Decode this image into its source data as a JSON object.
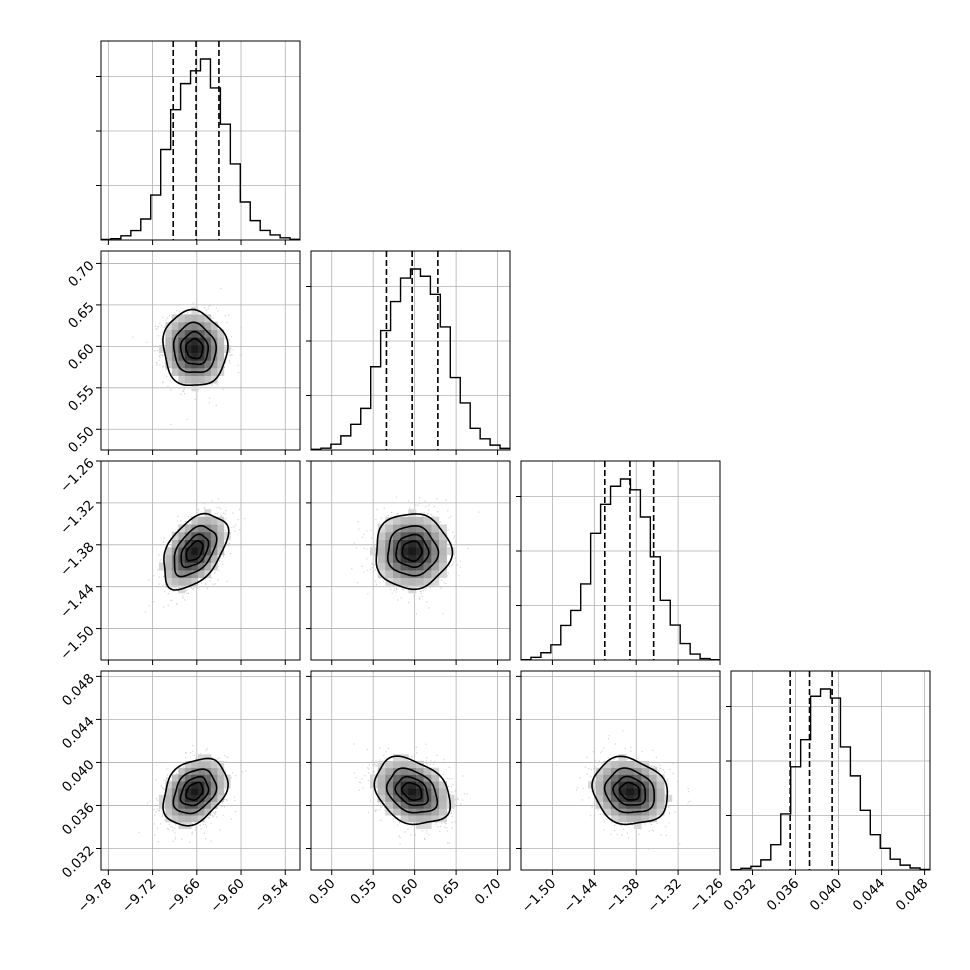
{
  "chart_data": {
    "type": "corner",
    "title": "",
    "parameters": [
      {
        "range": [
          -9.79,
          -9.52
        ],
        "ticks": [
          -9.78,
          -9.72,
          -9.66,
          -9.6,
          -9.54
        ],
        "tick_labels": [
          "−9.78",
          "−9.72",
          "−9.66",
          "−9.60",
          "−9.54"
        ],
        "quantiles": [
          -9.692,
          -9.661,
          -9.63
        ],
        "hist": [
          0.3,
          0.7,
          2.3,
          5.2,
          11.6,
          24.8,
          50.0,
          72.0,
          86.4,
          93.5,
          100.0,
          84.0,
          64.0,
          42.0,
          21.0,
          10.7,
          5.3,
          2.8,
          1.2,
          0.4
        ]
      },
      {
        "range": [
          0.475,
          0.715
        ],
        "ticks": [
          0.5,
          0.55,
          0.6,
          0.65,
          0.7
        ],
        "tick_labels": [
          "0.50",
          "0.55",
          "0.60",
          "0.65",
          "0.70"
        ],
        "quantiles": [
          0.566,
          0.597,
          0.628
        ],
        "hist": [
          0.4,
          1.0,
          3.2,
          7.8,
          14.2,
          23.0,
          46.0,
          66.0,
          82.0,
          95.0,
          100.0,
          96.0,
          86.0,
          68.0,
          40.0,
          26.0,
          12.0,
          6.2,
          2.7,
          0.9
        ]
      },
      {
        "range": [
          -1.545,
          -1.26
        ],
        "ticks": [
          -1.5,
          -1.44,
          -1.38,
          -1.32,
          -1.26
        ],
        "tick_labels": [
          "−1.50",
          "−1.44",
          "−1.38",
          "−1.32",
          "−1.26"
        ],
        "quantiles": [
          -1.425,
          -1.389,
          -1.355
        ],
        "hist": [
          0.2,
          1.5,
          4.0,
          8.4,
          19.1,
          27.4,
          42.0,
          70.0,
          86.0,
          96.0,
          100.0,
          94.0,
          79.0,
          57.0,
          33.0,
          19.3,
          9.1,
          3.3,
          0.8,
          0.2
        ]
      },
      {
        "range": [
          0.03,
          0.0485
        ],
        "ticks": [
          0.032,
          0.036,
          0.04,
          0.044,
          0.048
        ],
        "tick_labels": [
          "0.032",
          "0.036",
          "0.040",
          "0.044",
          "0.048"
        ],
        "quantiles": [
          0.0355,
          0.0373,
          0.0394
        ],
        "hist": [
          0.2,
          0.9,
          2.0,
          5.6,
          14.0,
          31.0,
          57.0,
          72.0,
          96.0,
          100.0,
          95.0,
          68.0,
          52.0,
          33.0,
          19.5,
          12.0,
          6.0,
          2.7,
          1.1,
          0.3
        ]
      }
    ],
    "pairs": [
      {
        "x": 0,
        "y": 1,
        "center": [
          -9.663,
          0.597
        ],
        "sd": [
          0.021,
          0.022
        ],
        "corr": -0.05
      },
      {
        "x": 0,
        "y": 2,
        "center": [
          -9.663,
          -1.389
        ],
        "sd": [
          0.021,
          0.026
        ],
        "corr": 0.45
      },
      {
        "x": 1,
        "y": 2,
        "center": [
          0.597,
          -1.389
        ],
        "sd": [
          0.022,
          0.026
        ],
        "corr": 0.0
      },
      {
        "x": 0,
        "y": 3,
        "center": [
          -9.663,
          0.0373
        ],
        "sd": [
          0.021,
          0.0015
        ],
        "corr": 0.3
      },
      {
        "x": 1,
        "y": 3,
        "center": [
          0.597,
          0.0373
        ],
        "sd": [
          0.022,
          0.0015
        ],
        "corr": -0.28
      },
      {
        "x": 2,
        "y": 3,
        "center": [
          -1.389,
          0.0373
        ],
        "sd": [
          0.026,
          0.0015
        ],
        "corr": -0.15
      }
    ],
    "contour_levels_sigma": [
      0.5,
      1.0,
      1.5,
      2.0
    ],
    "grid": true,
    "colors": {
      "line": "#000000",
      "scatter": "#c8c8c8",
      "grid": "#b0b0b0"
    }
  }
}
